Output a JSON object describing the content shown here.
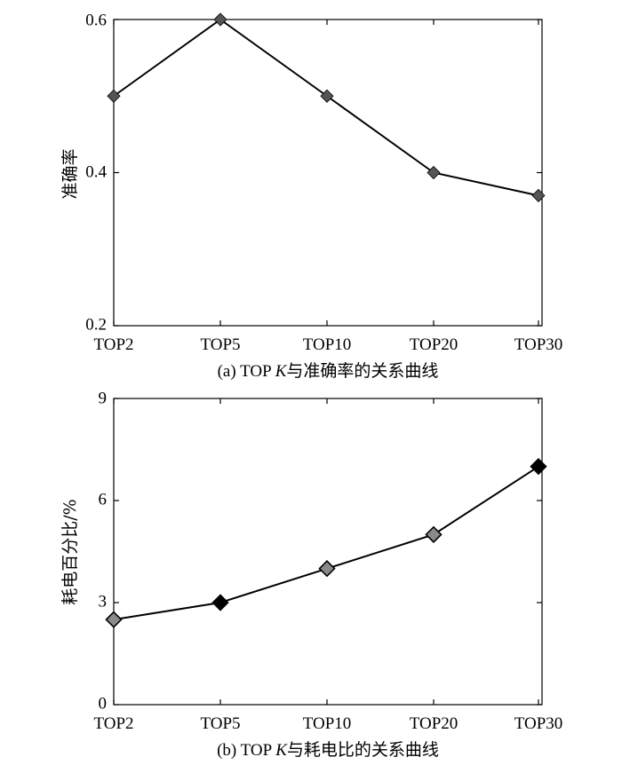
{
  "chart_data": [
    {
      "type": "line",
      "categories": [
        "TOP2",
        "TOP5",
        "TOP10",
        "TOP20",
        "TOP30"
      ],
      "series": [
        {
          "values": [
            0.5,
            0.6,
            0.5,
            0.4,
            0.37
          ],
          "marker_colors": [
            "#555555",
            "#555555",
            "#555555",
            "#555555",
            "#555555"
          ]
        }
      ],
      "ylabel": "准确率",
      "ylim": [
        0.2,
        0.6
      ],
      "yticks": [
        "0.2",
        "0.4",
        "0.6"
      ],
      "caption": "(a) TOP K与准确率的关系曲线",
      "caption_parts": {
        "prefix": "(a) TOP ",
        "italic": "K",
        "suffix": "与准确率的关系曲线"
      },
      "grid": false
    },
    {
      "type": "line",
      "categories": [
        "TOP2",
        "TOP5",
        "TOP10",
        "TOP20",
        "TOP30"
      ],
      "series": [
        {
          "values": [
            2.5,
            3,
            4,
            5,
            7
          ],
          "marker_colors": [
            "#8a8a8a",
            "#000000",
            "#8a8a8a",
            "#8a8a8a",
            "#000000"
          ]
        }
      ],
      "ylabel": "耗电百分比/%",
      "ylim": [
        0,
        9
      ],
      "yticks": [
        "0",
        "3",
        "6",
        "9"
      ],
      "caption": "(b) TOP K与耗电比的关系曲线",
      "caption_parts": {
        "prefix": "(b) TOP ",
        "italic": "K",
        "suffix": "与耗电比的关系曲线"
      },
      "grid": false
    }
  ]
}
